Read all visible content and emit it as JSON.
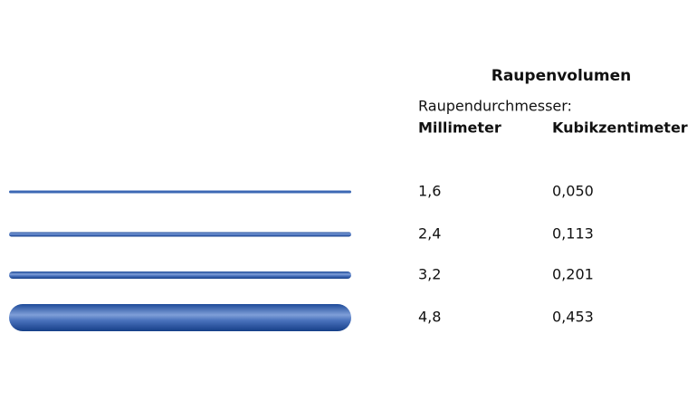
{
  "title": "Raupenvolumen",
  "table": {
    "caption": "Raupendurchmesser:",
    "header": [
      "Millimeter",
      "Kubikzentimeter"
    ],
    "rows": [
      [
        "1,6",
        "0,050"
      ],
      [
        "2,4",
        "0,113"
      ],
      [
        "3,2",
        "0,201"
      ],
      [
        "4,8",
        "0,453"
      ]
    ]
  }
}
